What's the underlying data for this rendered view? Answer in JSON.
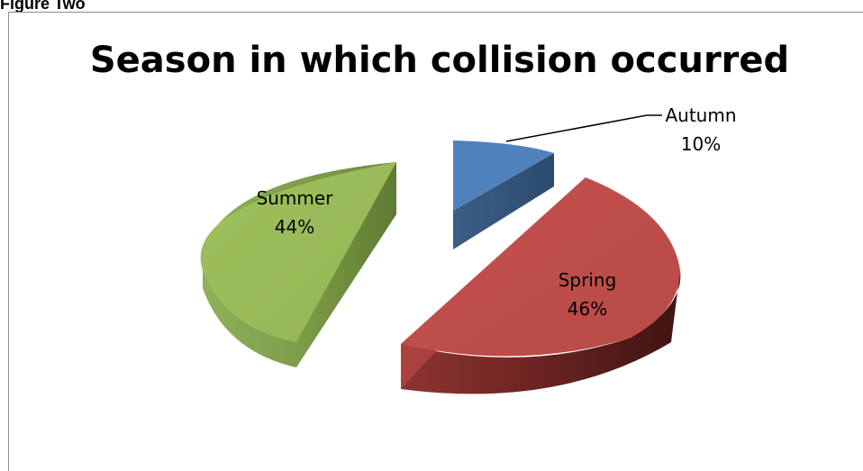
{
  "figure_caption": "Figure Two",
  "chart_data": {
    "type": "pie",
    "title": "Season in which collision occurred",
    "categories": [
      "Autumn",
      "Spring",
      "Summer"
    ],
    "values": [
      10,
      46,
      44
    ],
    "labels": [
      {
        "name": "Autumn",
        "pct": "10%"
      },
      {
        "name": "Spring",
        "pct": "46%"
      },
      {
        "name": "Summer",
        "pct": "44%"
      }
    ],
    "colors": {
      "Autumn": "#4f81bd",
      "Spring": "#c0504d",
      "Summer": "#9bbb59"
    },
    "exploded": true,
    "three_d": true,
    "legend": "none"
  }
}
